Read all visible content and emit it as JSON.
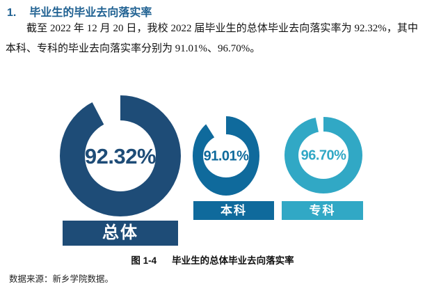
{
  "heading": {
    "number": "1.",
    "title": "毕业生的毕业去向落实率"
  },
  "paragraph": "截至 2022 年 12 月 20 日，我校 2022 届毕业生的总体毕业去向落实率为 92.32%，其中本科、专科的毕业去向落实率分别为 91.01%、96.70%。",
  "chart_data": {
    "type": "pie",
    "subtype": "donut-set",
    "title": "毕业生的总体毕业去向落实率",
    "legend_position": "below-each-donut",
    "series": [
      {
        "name": "总体",
        "value": 92.32,
        "label": "92.32%",
        "color": "#1E4C77"
      },
      {
        "name": "本科",
        "value": 91.01,
        "label": "91.01%",
        "color": "#0F6A9C"
      },
      {
        "name": "专科",
        "value": 96.7,
        "label": "96.70%",
        "color": "#31A8C5"
      }
    ]
  },
  "caption": {
    "figure_label": "图 1-4",
    "text": "毕业生的总体毕业去向落实率"
  },
  "source_note": "数据来源：新乡学院数据。"
}
